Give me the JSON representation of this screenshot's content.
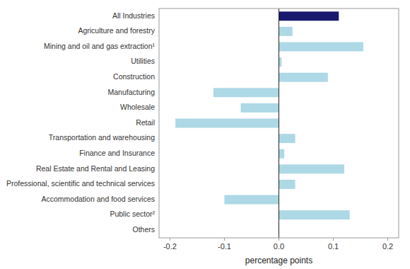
{
  "chart_data": {
    "type": "bar",
    "orientation": "horizontal",
    "categories": [
      "Others",
      "Public sector²",
      "Accommodation and food services",
      "Professional, scientific and technical services",
      "Real Estate and Rental and Leasing",
      "Finance and Insurance",
      "Transportation and warehousing",
      "Retail",
      "Wholesale",
      "Manufacturing",
      "Construction",
      "Utilities",
      "Mining and oil and gas extraction¹",
      "Agriculture and forestry",
      "All Industries"
    ],
    "values": [
      0.0,
      0.13,
      -0.1,
      0.03,
      0.12,
      0.01,
      0.03,
      -0.19,
      -0.07,
      -0.12,
      0.09,
      0.005,
      0.155,
      0.025,
      0.11
    ],
    "colors": [
      "#add8e6",
      "#add8e6",
      "#add8e6",
      "#add8e6",
      "#add8e6",
      "#add8e6",
      "#add8e6",
      "#add8e6",
      "#add8e6",
      "#add8e6",
      "#add8e6",
      "#add8e6",
      "#add8e6",
      "#add8e6",
      "#191970"
    ],
    "x_label": "percentage points",
    "xlim": [
      -0.22,
      0.22
    ],
    "xticks": [
      -0.2,
      -0.1,
      {
        "value": 0.0,
        "label": "0.0"
      },
      0.1,
      0.2
    ],
    "grid": false
  }
}
